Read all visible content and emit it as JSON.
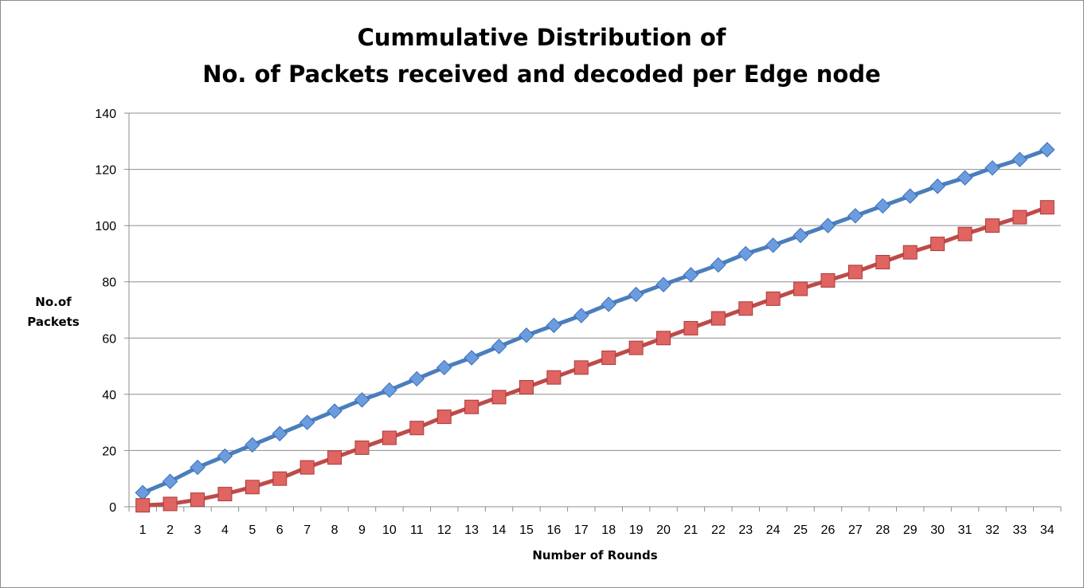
{
  "chart_data": {
    "type": "line",
    "title_lines": [
      "Cummulative Distribution of",
      "No. of Packets received and decoded per Edge node"
    ],
    "xlabel": "Number of Rounds",
    "ylabel_lines": [
      "No.of",
      "Packets"
    ],
    "ylim": [
      0,
      140
    ],
    "yticks": [
      0,
      20,
      40,
      60,
      80,
      100,
      120,
      140
    ],
    "categories": [
      1,
      2,
      3,
      4,
      5,
      6,
      7,
      8,
      9,
      10,
      11,
      12,
      13,
      14,
      15,
      16,
      17,
      18,
      19,
      20,
      21,
      22,
      23,
      24,
      25,
      26,
      27,
      28,
      29,
      30,
      31,
      32,
      33,
      34
    ],
    "grid": true,
    "legend": "none",
    "series": [
      {
        "color": "#4a7ebb",
        "marker": "diamond",
        "values": [
          5,
          9,
          14,
          18,
          22,
          26,
          30,
          34,
          38,
          41.5,
          45.5,
          49.5,
          53,
          57,
          61,
          64.5,
          68,
          72,
          75.5,
          79,
          82.5,
          86,
          90,
          93,
          96.5,
          100,
          103.5,
          107,
          110.5,
          114,
          117,
          120.5,
          123.5,
          127
        ]
      },
      {
        "color": "#be4b48",
        "marker": "square",
        "values": [
          0.5,
          1,
          2.5,
          4.5,
          7,
          10,
          14,
          17.5,
          21,
          24.5,
          28,
          32,
          35.5,
          39,
          42.5,
          46,
          49.5,
          53,
          56.5,
          60,
          63.5,
          67,
          70.5,
          74,
          77.5,
          80.5,
          83.5,
          87,
          90.5,
          93.5,
          97,
          100,
          103,
          106.5
        ]
      }
    ]
  }
}
